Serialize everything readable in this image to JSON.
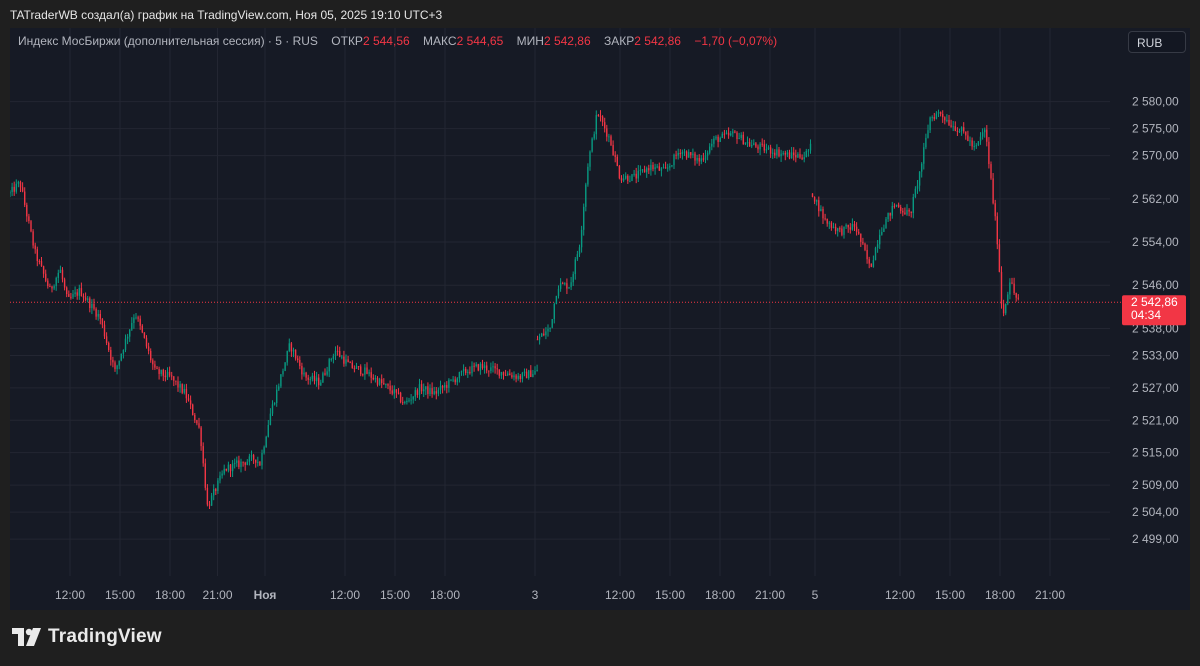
{
  "header": {
    "text": "TATraderWB создал(а) график на TradingView.com, Ноя 05, 2025 19:10 UTC+3"
  },
  "legend": {
    "symbol": "Индекс МосБиржи (дополнительная сессия) · 5 · RUS",
    "open_label": "ОТКР",
    "open_value": "2 544,56",
    "high_label": "МАКС",
    "high_value": "2 544,65",
    "low_label": "МИН",
    "low_value": "2 542,86",
    "close_label": "ЗАКР",
    "close_value": "2 542,86",
    "change": "−1,70 (−0,07%)"
  },
  "currency_button": {
    "label": "RUB"
  },
  "price_badge": {
    "value": "2 542,86",
    "countdown": "04:34"
  },
  "footer": {
    "brand": "TradingView"
  },
  "colors": {
    "up": "#089981",
    "down": "#f23645",
    "bg": "#161a25",
    "grid": "#232632",
    "axis_text": "#b2b5be"
  },
  "chart_data": {
    "type": "candlestick",
    "ylim": [
      2495.5,
      2584
    ],
    "y_ticks": [
      {
        "value": 2580,
        "label": "2 580,00"
      },
      {
        "value": 2575,
        "label": "2 575,00"
      },
      {
        "value": 2570,
        "label": "2 570,00"
      },
      {
        "value": 2562,
        "label": "2 562,00"
      },
      {
        "value": 2554,
        "label": "2 554,00"
      },
      {
        "value": 2546,
        "label": "2 546,00"
      },
      {
        "value": 2538,
        "label": "2 538,00"
      },
      {
        "value": 2533,
        "label": "2 533,00"
      },
      {
        "value": 2527,
        "label": "2 527,00"
      },
      {
        "value": 2521,
        "label": "2 521,00"
      },
      {
        "value": 2515,
        "label": "2 515,00"
      },
      {
        "value": 2509,
        "label": "2 509,00"
      },
      {
        "value": 2504,
        "label": "2 504,00"
      },
      {
        "value": 2499,
        "label": "2 499,00"
      }
    ],
    "x_ticks": [
      {
        "label": "12:00",
        "x": 1.2
      },
      {
        "label": "15:00",
        "x": 2.2
      },
      {
        "label": "18:00",
        "x": 3.2
      },
      {
        "label": "21:00",
        "x": 4.15
      },
      {
        "label": "Ноя",
        "x": 5.1
      },
      {
        "label": "12:00",
        "x": 6.7
      },
      {
        "label": "15:00",
        "x": 7.7
      },
      {
        "label": "18:00",
        "x": 8.7
      },
      {
        "label": "3",
        "x": 10.5
      },
      {
        "label": "12:00",
        "x": 12.2
      },
      {
        "label": "15:00",
        "x": 13.2
      },
      {
        "label": "18:00",
        "x": 14.2
      },
      {
        "label": "21:00",
        "x": 15.2
      },
      {
        "label": "5",
        "x": 16.1
      },
      {
        "label": "12:00",
        "x": 17.8
      },
      {
        "label": "15:00",
        "x": 18.8
      },
      {
        "label": "18:00",
        "x": 19.8
      },
      {
        "label": "21:00",
        "x": 20.8
      }
    ],
    "x_range": [
      0,
      22
    ],
    "last_price": 2542.86,
    "segments": [
      {
        "x_start": 0.0,
        "x_end": 10.55,
        "points": [
          [
            0.0,
            2563
          ],
          [
            0.2,
            2565
          ],
          [
            0.5,
            2552
          ],
          [
            0.8,
            2545
          ],
          [
            1.0,
            2549
          ],
          [
            1.15,
            2543
          ],
          [
            1.4,
            2545
          ],
          [
            1.8,
            2540
          ],
          [
            2.1,
            2530
          ],
          [
            2.5,
            2541
          ],
          [
            2.9,
            2530
          ],
          [
            3.2,
            2529
          ],
          [
            3.5,
            2526
          ],
          [
            3.8,
            2519
          ],
          [
            3.95,
            2505
          ],
          [
            4.1,
            2508
          ],
          [
            4.3,
            2512
          ],
          [
            4.6,
            2513
          ],
          [
            4.9,
            2514
          ],
          [
            5.0,
            2513
          ],
          [
            5.2,
            2522
          ],
          [
            5.6,
            2535
          ],
          [
            5.9,
            2529
          ],
          [
            6.2,
            2528
          ],
          [
            6.5,
            2534
          ],
          [
            6.8,
            2531
          ],
          [
            7.1,
            2530
          ],
          [
            7.4,
            2528
          ],
          [
            7.7,
            2526
          ],
          [
            7.9,
            2524
          ],
          [
            8.2,
            2527
          ],
          [
            8.5,
            2526
          ],
          [
            8.8,
            2528
          ],
          [
            9.1,
            2530
          ],
          [
            9.4,
            2531
          ],
          [
            9.8,
            2530
          ],
          [
            10.2,
            2529
          ],
          [
            10.5,
            2530
          ]
        ]
      },
      {
        "x_start": 10.55,
        "x_end": 16.05,
        "points": [
          [
            10.55,
            2536
          ],
          [
            10.8,
            2538
          ],
          [
            10.95,
            2546
          ],
          [
            11.2,
            2546
          ],
          [
            11.4,
            2554
          ],
          [
            11.55,
            2568
          ],
          [
            11.75,
            2578
          ],
          [
            12.0,
            2573
          ],
          [
            12.2,
            2566
          ],
          [
            12.5,
            2566
          ],
          [
            12.8,
            2568
          ],
          [
            13.1,
            2567
          ],
          [
            13.4,
            2571
          ],
          [
            13.8,
            2569
          ],
          [
            14.1,
            2573
          ],
          [
            14.5,
            2574
          ],
          [
            14.8,
            2572
          ],
          [
            15.2,
            2571
          ],
          [
            15.6,
            2570
          ],
          [
            15.9,
            2570
          ],
          [
            16.05,
            2572
          ]
        ]
      },
      {
        "x_start": 16.05,
        "x_end": 20.2,
        "points": [
          [
            16.05,
            2563
          ],
          [
            16.3,
            2558
          ],
          [
            16.6,
            2556
          ],
          [
            16.9,
            2557
          ],
          [
            17.1,
            2552
          ],
          [
            17.2,
            2549
          ],
          [
            17.4,
            2556
          ],
          [
            17.7,
            2561
          ],
          [
            18.0,
            2559
          ],
          [
            18.2,
            2567
          ],
          [
            18.4,
            2577
          ],
          [
            18.6,
            2578
          ],
          [
            18.8,
            2576
          ],
          [
            19.1,
            2574
          ],
          [
            19.3,
            2571
          ],
          [
            19.5,
            2575
          ],
          [
            19.6,
            2567
          ],
          [
            19.75,
            2554
          ],
          [
            19.85,
            2540
          ],
          [
            20.0,
            2547
          ],
          [
            20.1,
            2544
          ],
          [
            20.2,
            2543
          ]
        ]
      }
    ]
  }
}
